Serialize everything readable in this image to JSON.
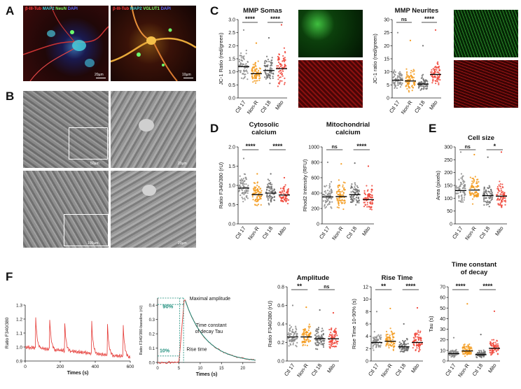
{
  "panels": {
    "A": "A",
    "B": "B",
    "C": "C",
    "D": "D",
    "E": "E",
    "F": "F"
  },
  "colors": {
    "ctl": "#8c8c8c",
    "nonr": "#f39a1c",
    "mito": "#f0463a",
    "ctl18": "#6f6f6f",
    "green": "#37b24d",
    "red": "#d21f1f",
    "trace": "#e53935",
    "fit": "#1a8c7a"
  },
  "panelA": {
    "left": {
      "parts": [
        {
          "text": "β-III-Tub",
          "color": "#ff3a3a"
        },
        {
          "text": " MAP2",
          "color": "#3ad6e0"
        },
        {
          "text": " NeuN",
          "color": "#7dff6a"
        },
        {
          "text": " DAPI",
          "color": "#5a6bff"
        }
      ],
      "scale": "20µm"
    },
    "right": {
      "parts": [
        {
          "text": "β-III-Tub",
          "color": "#ff3a3a"
        },
        {
          "text": " MAP2",
          "color": "#3ad6e0"
        },
        {
          "text": " VGLUT1",
          "color": "#7dff6a"
        },
        {
          "text": " DAPI",
          "color": "#5a6bff"
        }
      ],
      "scale": "10µm"
    }
  },
  "panelB": {
    "scales": [
      "50µm",
      "20µm",
      "100µm",
      "20µm"
    ]
  },
  "groups": [
    "Ctl 17",
    "Non-R",
    "Ctl 18",
    "Mito"
  ],
  "charts": [
    {
      "id": "mmp-somas",
      "title": [
        "MMP Somas"
      ],
      "ylabel": "JC-1 Ratio (red/green)",
      "yticks": [
        "0.0",
        "0.5",
        "1.0",
        "1.5",
        "2.0",
        "2.5",
        "3.0"
      ],
      "ymin": 0,
      "ymax": 3.0,
      "means": [
        1.2,
        0.93,
        1.05,
        1.12
      ],
      "spreads": [
        0.9,
        0.7,
        0.8,
        1.3
      ],
      "maxv": [
        2.6,
        2.1,
        2.3,
        2.8
      ],
      "sig": [
        "****",
        "****"
      ]
    },
    {
      "id": "mmp-neurites",
      "title": [
        "MMP Neurites"
      ],
      "ylabel": "JC-1 ratio (red/green)",
      "yticks": [
        "0",
        "5",
        "10",
        "15",
        "20",
        "25",
        "30"
      ],
      "ymin": 0,
      "ymax": 30,
      "means": [
        6.8,
        6.5,
        5.3,
        9.0
      ],
      "spreads": [
        6,
        7,
        5,
        8
      ],
      "maxv": [
        25,
        22,
        20,
        26
      ],
      "sig": [
        "ns",
        "****"
      ]
    },
    {
      "id": "cytosolic-calcium",
      "title": [
        "Cytosolic",
        "calcium"
      ],
      "ylabel": "Ratio F340/380 (rU)",
      "yticks": [
        "0.0",
        "0.5",
        "1.0",
        "1.5",
        "2.0"
      ],
      "ymin": 0,
      "ymax": 2.0,
      "means": [
        0.93,
        0.76,
        0.8,
        0.75
      ],
      "spreads": [
        0.6,
        0.5,
        0.5,
        0.4
      ],
      "maxv": [
        1.7,
        1.3,
        1.3,
        1.2
      ],
      "sig": [
        "****",
        "****"
      ]
    },
    {
      "id": "mitochondrial-calcium",
      "title": [
        "Mitochondrial",
        "calcium"
      ],
      "ylabel": "Rhod2 Intensity (RFU)",
      "yticks": [
        "0",
        "200",
        "400",
        "600",
        "800",
        "1000"
      ],
      "ymin": 0,
      "ymax": 1000,
      "means": [
        350,
        355,
        380,
        315
      ],
      "spreads": [
        300,
        300,
        280,
        250
      ],
      "maxv": [
        800,
        780,
        790,
        750
      ],
      "sig": [
        "ns",
        "****"
      ]
    },
    {
      "id": "cell-size",
      "title": [
        "Cell size"
      ],
      "ylabel": "Area (pixels)",
      "yticks": [
        "0",
        "50",
        "100",
        "150",
        "200",
        "250",
        "300"
      ],
      "ymin": 0,
      "ymax": 300,
      "means": [
        130,
        132,
        110,
        108
      ],
      "spreads": [
        90,
        90,
        80,
        85
      ],
      "maxv": [
        280,
        270,
        260,
        280
      ],
      "sig": [
        "ns",
        "*"
      ]
    },
    {
      "id": "amplitude",
      "title": [
        "Amplitude"
      ],
      "ylabel": "Ratio F340/380 (rU)",
      "yticks": [
        "0.0",
        "0.2",
        "0.4",
        "0.6",
        "0.8"
      ],
      "ymin": 0,
      "ymax": 0.8,
      "means": [
        0.26,
        0.26,
        0.24,
        0.24
      ],
      "spreads": [
        0.2,
        0.2,
        0.2,
        0.2
      ],
      "maxv": [
        0.6,
        0.58,
        0.55,
        0.52
      ],
      "sig": [
        "**",
        "ns"
      ]
    },
    {
      "id": "rise-time",
      "title": [
        "Rise Time"
      ],
      "ylabel": "Rise Time 10-90% (s)",
      "yticks": [
        "0",
        "2",
        "4",
        "6",
        "8",
        "10",
        "12"
      ],
      "ymin": 0,
      "ymax": 12,
      "means": [
        3.0,
        3.2,
        2.3,
        3.0
      ],
      "spreads": [
        2.5,
        2.8,
        2.2,
        2.8
      ],
      "maxv": [
        8,
        8.5,
        6,
        8.6
      ],
      "sig": [
        "**",
        "****"
      ]
    },
    {
      "id": "time-constant",
      "title": [
        "Time constant",
        "of decay"
      ],
      "ylabel": "Tau (s)",
      "yticks": [
        "0",
        "10",
        "20",
        "30",
        "40",
        "50",
        "60",
        "70"
      ],
      "ymin": 0,
      "ymax": 70,
      "means": [
        7,
        9.5,
        6,
        12
      ],
      "spreads": [
        6,
        10,
        6,
        12
      ],
      "maxv": [
        22,
        54,
        25,
        47
      ],
      "sig": [
        "****",
        "****"
      ]
    }
  ],
  "trace": {
    "ylabel": "Ratio F340/380",
    "xlabel": "Times (s)",
    "yticks": [
      "0.9",
      "1.0",
      "1.1",
      "1.2",
      "1.3"
    ],
    "xticks": [
      "0",
      "200",
      "400",
      "600"
    ],
    "peaks": [
      60,
      140,
      225,
      380,
      470,
      560
    ]
  },
  "kinetics": {
    "ylabel": "Ratio F340/380-baseline (rU)",
    "xlabel": "Times (s)",
    "yticks": [
      "0.0",
      "0.1",
      "0.2",
      "0.3",
      "0.4"
    ],
    "xticks": [
      "0",
      "5",
      "10",
      "15",
      "20"
    ],
    "ann": {
      "max": "Maximal amplitude",
      "tau1": "Time constant",
      "tau2": "of decay Tau",
      "rise": "Rise time",
      "p90": "90%",
      "p10": "10%"
    }
  }
}
